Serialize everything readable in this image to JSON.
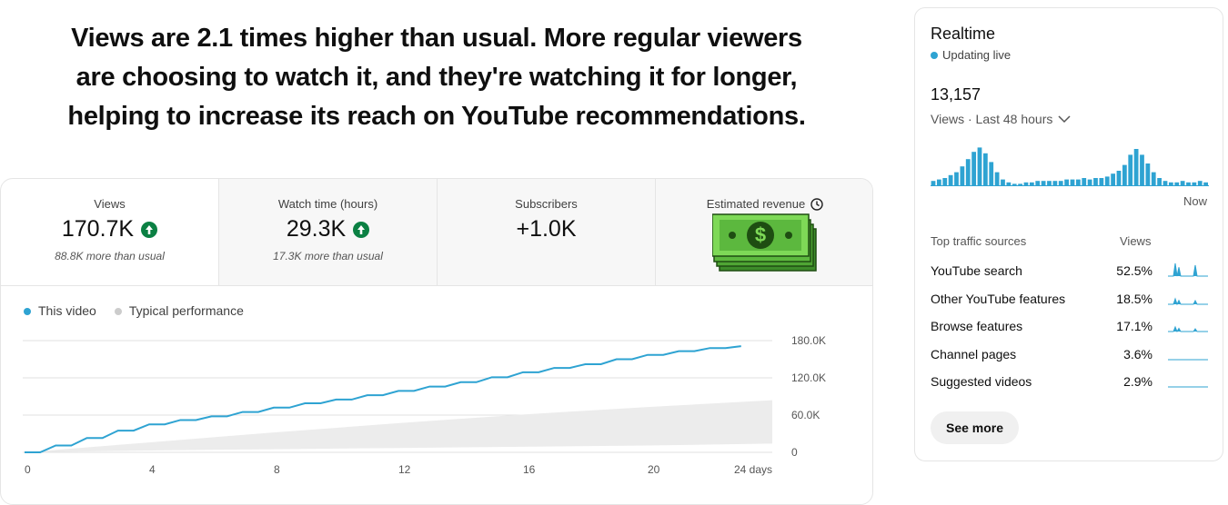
{
  "headline": [
    "Views are 2.1 times higher than usual. More regular viewers",
    "are choosing to watch it, and they're watching it for longer,",
    "helping to increase its reach on YouTube recommendations."
  ],
  "metrics": [
    {
      "label": "Views",
      "value": "170.7K",
      "note": "88.8K more than usual"
    },
    {
      "label": "Watch time (hours)",
      "value": "29.3K",
      "note": "17.3K more than usual"
    },
    {
      "label": "Subscribers",
      "value": "+1.0K"
    },
    {
      "label": "Estimated revenue"
    }
  ],
  "chart_data": {
    "type": "line",
    "series": [
      {
        "name": "This video",
        "color": "#2ea3d2",
        "x": [
          0,
          1,
          2,
          3,
          4,
          5,
          6,
          7,
          8,
          9,
          10,
          11,
          12,
          13,
          14,
          15,
          16,
          17,
          18,
          19,
          20,
          21,
          22,
          23
        ],
        "values": [
          0,
          11000,
          23000,
          35000,
          45000,
          52000,
          58000,
          65000,
          72000,
          79000,
          85000,
          92000,
          99000,
          106000,
          113000,
          121000,
          129000,
          136000,
          142000,
          150000,
          157000,
          163000,
          168000,
          171000
        ]
      },
      {
        "name": "Typical performance",
        "color": "#ececec",
        "legend_color": "#cccccc",
        "x": [
          0,
          4,
          8,
          12,
          16,
          20,
          24
        ],
        "lower": [
          0,
          3000,
          5000,
          7000,
          9000,
          11000,
          14000
        ],
        "values": [
          0,
          16000,
          32000,
          47000,
          61000,
          73000,
          84000
        ]
      }
    ],
    "xlim": [
      0,
      24
    ],
    "xticks": [
      0,
      4,
      8,
      12,
      16,
      20,
      {
        "value": 24,
        "label": "24 days"
      }
    ],
    "ylim": [
      0,
      180000
    ],
    "yticks": [
      0,
      {
        "value": 60000,
        "label": "60.0K"
      },
      {
        "value": 120000,
        "label": "120.0K"
      },
      {
        "value": 180000,
        "label": "180.0K"
      }
    ],
    "grid": true
  },
  "realtime": {
    "title": "Realtime",
    "status": "Updating live",
    "count": "13,157",
    "period": "Views · Last 48 hours",
    "bars": [
      3,
      4,
      5,
      7,
      9,
      13,
      18,
      23,
      26,
      22,
      16,
      9,
      4,
      2,
      1,
      1,
      2,
      2,
      3,
      3,
      3,
      3,
      3,
      4,
      4,
      4,
      5,
      4,
      5,
      5,
      6,
      8,
      10,
      14,
      21,
      25,
      21,
      15,
      9,
      5,
      3,
      2,
      2,
      3,
      2,
      2,
      3,
      2
    ],
    "bars_end": "Now",
    "traffic_header": "Top traffic sources",
    "traffic_value_header": "Views",
    "traffic": [
      {
        "name": "YouTube search",
        "share": "52.5%"
      },
      {
        "name": "Other YouTube features",
        "share": "18.5%"
      },
      {
        "name": "Browse features",
        "share": "17.1%"
      },
      {
        "name": "Channel pages",
        "share": "3.6%"
      },
      {
        "name": "Suggested videos",
        "share": "2.9%"
      }
    ],
    "button": "See more"
  }
}
